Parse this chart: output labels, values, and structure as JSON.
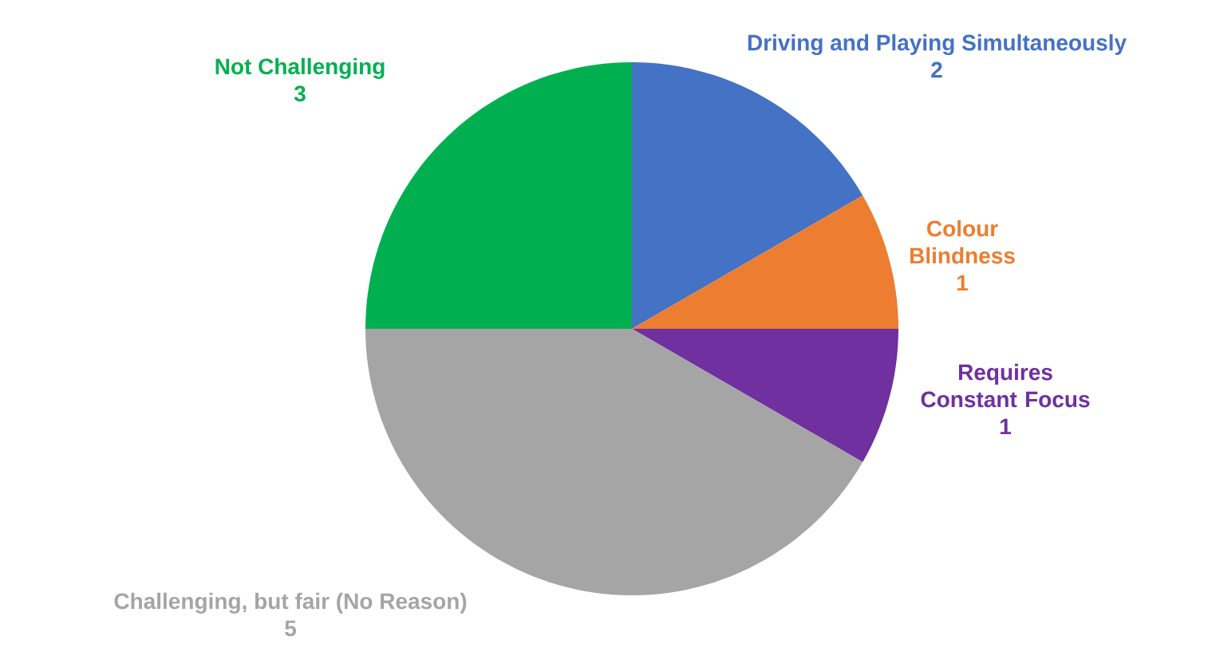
{
  "chart_data": {
    "type": "pie",
    "categories": [
      "Driving and Playing Simultaneously",
      "Colour Blindness",
      "Requires Constant Focus",
      "Challenging, but fair (No Reason)",
      "Not Challenging"
    ],
    "values": [
      2,
      1,
      1,
      5,
      3
    ],
    "colors": [
      "#4472c4",
      "#ed7d31",
      "#7030a0",
      "#a5a5a5",
      "#00b050"
    ],
    "data_labels": true
  }
}
